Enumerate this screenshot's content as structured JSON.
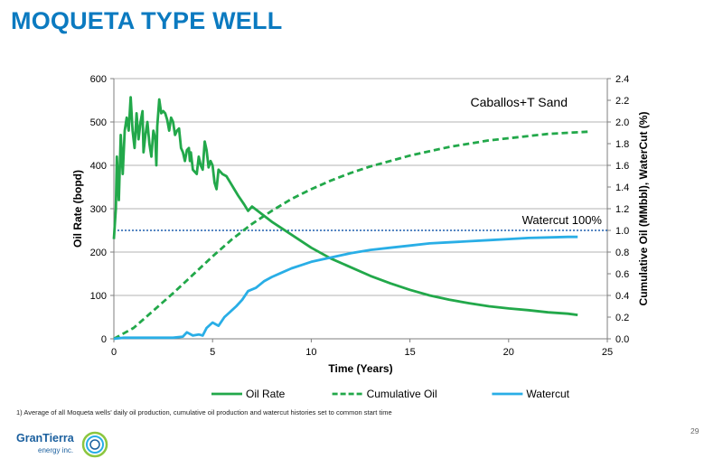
{
  "page": {
    "title": "MOQUETA TYPE WELL",
    "footnote": "1) Average of all Moqueta wells’ daily oil production, cumulative oil production and watercut histories set to common start time",
    "page_number": "29",
    "logo_name": "GranTierra",
    "logo_sub": "energy inc."
  },
  "colors": {
    "title": "#0b7ac0",
    "oil_rate": "#22a84a",
    "cumulative_oil": "#22a84a",
    "watercut": "#29aee6",
    "watercut_100_line": "#1f5fae"
  },
  "chart_data": {
    "type": "line",
    "annotation": "Caballos+T Sand",
    "reference_label": "Watercut 100%",
    "reference_value_right": 1.0,
    "xlabel": "Time (Years)",
    "ylabel": "Oil Rate (bopd)",
    "y2label": "Cumulative Oil (MMbbl), WaterCut (%)",
    "xlim": [
      0,
      25
    ],
    "ylim": [
      0,
      600
    ],
    "y2lim": [
      0,
      2.4
    ],
    "xticks": [
      0,
      5,
      10,
      15,
      20,
      25
    ],
    "yticks": [
      0,
      100,
      200,
      300,
      400,
      500,
      600
    ],
    "y2ticks": [
      "0.0",
      "0.2",
      "0.4",
      "0.6",
      "0.8",
      "1.0",
      "1.2",
      "1.4",
      "1.6",
      "1.8",
      "2.0",
      "2.2",
      "2.4"
    ],
    "grid": "horizontal",
    "legend_position": "bottom",
    "series": [
      {
        "name": "Oil Rate",
        "axis": "left",
        "style": "solid",
        "points": [
          [
            0,
            230
          ],
          [
            0.1,
            300
          ],
          [
            0.15,
            420
          ],
          [
            0.25,
            320
          ],
          [
            0.35,
            470
          ],
          [
            0.45,
            380
          ],
          [
            0.55,
            480
          ],
          [
            0.65,
            510
          ],
          [
            0.75,
            480
          ],
          [
            0.85,
            557
          ],
          [
            0.95,
            480
          ],
          [
            1.05,
            440
          ],
          [
            1.15,
            520
          ],
          [
            1.25,
            460
          ],
          [
            1.35,
            500
          ],
          [
            1.45,
            525
          ],
          [
            1.5,
            430
          ],
          [
            1.6,
            470
          ],
          [
            1.7,
            500
          ],
          [
            1.8,
            450
          ],
          [
            1.9,
            420
          ],
          [
            2.0,
            480
          ],
          [
            2.1,
            460
          ],
          [
            2.15,
            400
          ],
          [
            2.2,
            490
          ],
          [
            2.3,
            552
          ],
          [
            2.4,
            520
          ],
          [
            2.5,
            525
          ],
          [
            2.6,
            520
          ],
          [
            2.7,
            505
          ],
          [
            2.8,
            480
          ],
          [
            2.9,
            510
          ],
          [
            3.0,
            500
          ],
          [
            3.1,
            470
          ],
          [
            3.2,
            480
          ],
          [
            3.3,
            485
          ],
          [
            3.4,
            440
          ],
          [
            3.5,
            430
          ],
          [
            3.6,
            410
          ],
          [
            3.7,
            435
          ],
          [
            3.8,
            440
          ],
          [
            3.85,
            410
          ],
          [
            3.9,
            430
          ],
          [
            4.0,
            390
          ],
          [
            4.1,
            385
          ],
          [
            4.2,
            380
          ],
          [
            4.3,
            420
          ],
          [
            4.4,
            400
          ],
          [
            4.5,
            390
          ],
          [
            4.6,
            455
          ],
          [
            4.7,
            435
          ],
          [
            4.8,
            395
          ],
          [
            4.9,
            410
          ],
          [
            5.0,
            400
          ],
          [
            5.1,
            360
          ],
          [
            5.2,
            345
          ],
          [
            5.3,
            390
          ],
          [
            5.5,
            380
          ],
          [
            5.7,
            375
          ],
          [
            5.9,
            360
          ],
          [
            6.1,
            345
          ],
          [
            6.3,
            330
          ],
          [
            6.6,
            310
          ],
          [
            6.8,
            295
          ],
          [
            7.0,
            305
          ],
          [
            8.0,
            270
          ],
          [
            9.0,
            240
          ],
          [
            10.0,
            210
          ],
          [
            11.0,
            185
          ],
          [
            12.0,
            165
          ],
          [
            13.0,
            145
          ],
          [
            14.0,
            128
          ],
          [
            15.0,
            113
          ],
          [
            16.0,
            100
          ],
          [
            17.0,
            90
          ],
          [
            18.0,
            82
          ],
          [
            19.0,
            75
          ],
          [
            20.0,
            70
          ],
          [
            21.0,
            66
          ],
          [
            22.0,
            61
          ],
          [
            23.0,
            58
          ],
          [
            23.5,
            55
          ]
        ]
      },
      {
        "name": "Cumulative Oil",
        "axis": "right",
        "style": "dashed",
        "points": [
          [
            0,
            0
          ],
          [
            1,
            0.1
          ],
          [
            2,
            0.26
          ],
          [
            3,
            0.42
          ],
          [
            4,
            0.59
          ],
          [
            5,
            0.76
          ],
          [
            6,
            0.92
          ],
          [
            7,
            1.06
          ],
          [
            8,
            1.18
          ],
          [
            9,
            1.29
          ],
          [
            10,
            1.38
          ],
          [
            11,
            1.46
          ],
          [
            12,
            1.53
          ],
          [
            13,
            1.59
          ],
          [
            14,
            1.64
          ],
          [
            15,
            1.69
          ],
          [
            16,
            1.73
          ],
          [
            17,
            1.77
          ],
          [
            18,
            1.8
          ],
          [
            19,
            1.83
          ],
          [
            20,
            1.85
          ],
          [
            21,
            1.87
          ],
          [
            22,
            1.89
          ],
          [
            23,
            1.9
          ],
          [
            24,
            1.91
          ]
        ]
      },
      {
        "name": "Watercut",
        "axis": "right",
        "style": "solid",
        "points": [
          [
            0,
            0
          ],
          [
            0.5,
            0.01
          ],
          [
            1,
            0.01
          ],
          [
            2,
            0.01
          ],
          [
            3,
            0.01
          ],
          [
            3.5,
            0.02
          ],
          [
            3.7,
            0.06
          ],
          [
            4.0,
            0.03
          ],
          [
            4.3,
            0.04
          ],
          [
            4.5,
            0.03
          ],
          [
            4.7,
            0.1
          ],
          [
            5.0,
            0.15
          ],
          [
            5.3,
            0.12
          ],
          [
            5.6,
            0.2
          ],
          [
            5.9,
            0.25
          ],
          [
            6.2,
            0.3
          ],
          [
            6.5,
            0.36
          ],
          [
            6.8,
            0.44
          ],
          [
            7.2,
            0.47
          ],
          [
            7.6,
            0.53
          ],
          [
            8,
            0.57
          ],
          [
            8.5,
            0.61
          ],
          [
            9,
            0.65
          ],
          [
            9.5,
            0.68
          ],
          [
            10,
            0.71
          ],
          [
            11,
            0.75
          ],
          [
            12,
            0.79
          ],
          [
            13,
            0.82
          ],
          [
            14,
            0.84
          ],
          [
            15,
            0.86
          ],
          [
            16,
            0.88
          ],
          [
            17,
            0.89
          ],
          [
            18,
            0.9
          ],
          [
            19,
            0.91
          ],
          [
            20,
            0.92
          ],
          [
            21,
            0.93
          ],
          [
            22,
            0.935
          ],
          [
            23,
            0.94
          ],
          [
            23.5,
            0.94
          ]
        ]
      }
    ]
  }
}
